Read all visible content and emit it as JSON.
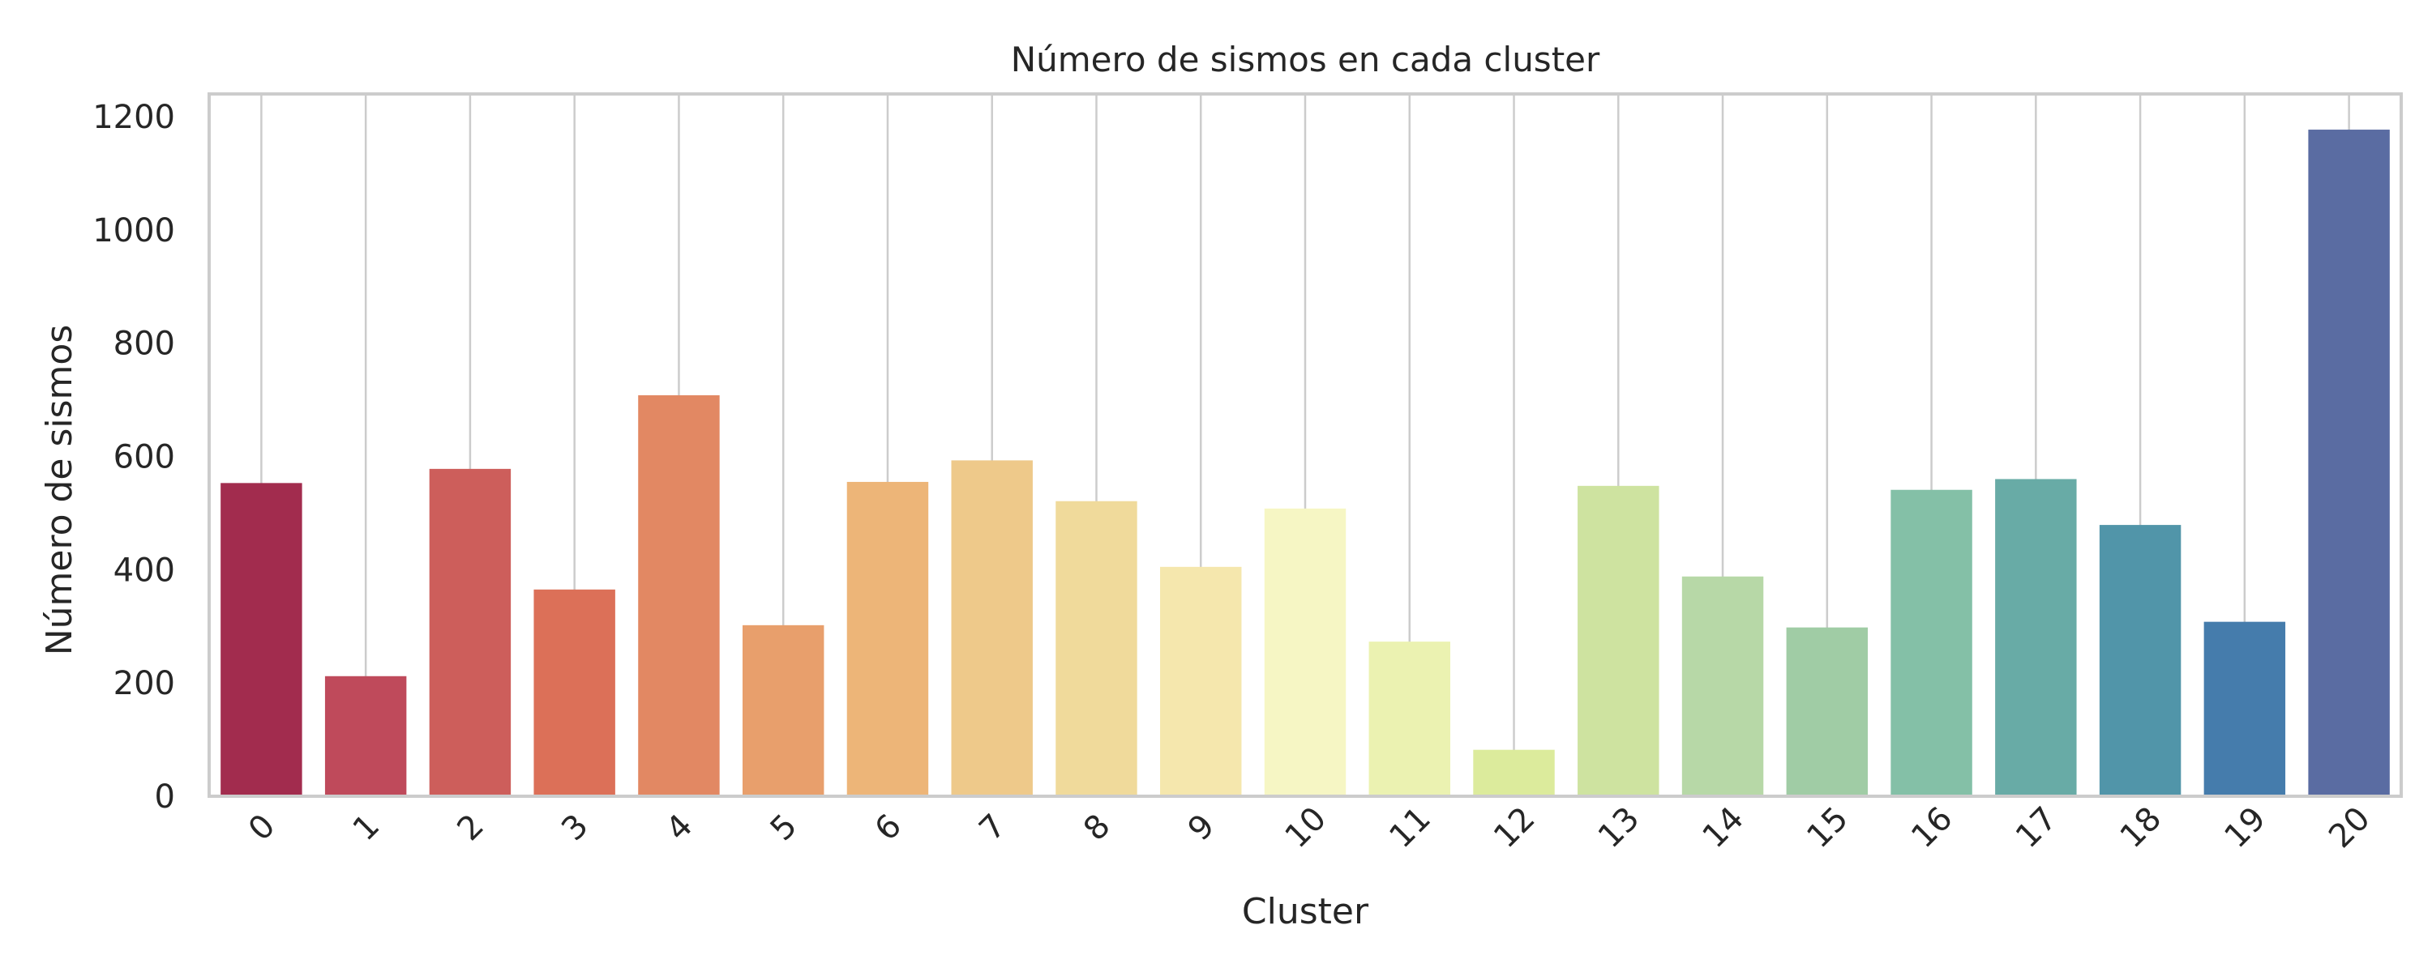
{
  "chart_data": {
    "type": "bar",
    "title": "Número de sismos en cada cluster",
    "xlabel": "Cluster",
    "ylabel": "Número de sismos",
    "categories": [
      "0",
      "1",
      "2",
      "3",
      "4",
      "5",
      "6",
      "7",
      "8",
      "9",
      "10",
      "11",
      "12",
      "13",
      "14",
      "15",
      "16",
      "17",
      "18",
      "19",
      "20"
    ],
    "values": [
      553,
      212,
      578,
      365,
      708,
      302,
      555,
      593,
      521,
      405,
      508,
      273,
      82,
      548,
      388,
      298,
      541,
      560,
      479,
      308,
      1177
    ],
    "ylim": [
      0,
      1240
    ],
    "yticks": [
      "0",
      "200",
      "400",
      "600",
      "800",
      "1000",
      "1200"
    ],
    "grid": "vertical lines at each category",
    "colors": [
      "#a22c4e",
      "#bf4a5b",
      "#cd5e5b",
      "#dc7058",
      "#e28863",
      "#e89f6c",
      "#edb578",
      "#eec98a",
      "#f0da9b",
      "#f5e7ad",
      "#f6f6c4",
      "#ebf2b1",
      "#dceb9c",
      "#cee3a0",
      "#b7d8a7",
      "#a0cca5",
      "#84c0a7",
      "#68aba6",
      "#5195a9",
      "#457cac",
      "#5a6ca2"
    ]
  }
}
